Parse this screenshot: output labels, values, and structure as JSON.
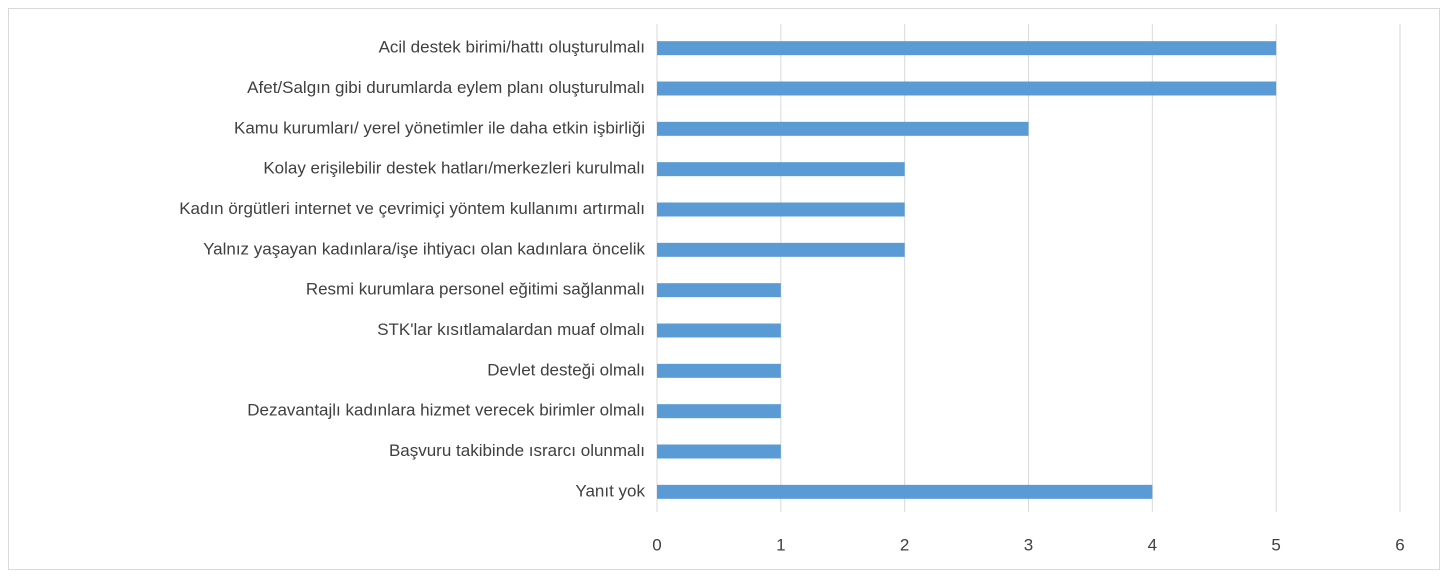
{
  "chart_data": {
    "type": "bar",
    "orientation": "horizontal",
    "categories": [
      "Acil destek birimi/hattı oluşturulmalı",
      "Afet/Salgın gibi durumlarda eylem planı oluşturulmalı",
      "Kamu kurumları/ yerel yönetimler ile daha etkin işbirliği",
      "Kolay erişilebilir destek hatları/merkezleri kurulmalı",
      "Kadın örgütleri internet ve çevrimiçi yöntem kullanımı artırmalı",
      "Yalnız yaşayan kadınlara/işe ihtiyacı olan kadınlara öncelik",
      "Resmi kurumlara personel eğitimi sağlanmalı",
      "STK'lar kısıtlamalardan muaf olmalı",
      "Devlet desteği olmalı",
      "Dezavantajlı kadınlara hizmet verecek birimler olmalı",
      "Başvuru takibinde ısrarcı olunmalı",
      "Yanıt yok"
    ],
    "values": [
      5,
      5,
      3,
      2,
      2,
      2,
      1,
      1,
      1,
      1,
      1,
      4
    ],
    "color": "#5b9bd5",
    "xlim": [
      0,
      6
    ],
    "xticks": [
      0,
      1,
      2,
      3,
      4,
      5,
      6
    ],
    "grid": true
  }
}
